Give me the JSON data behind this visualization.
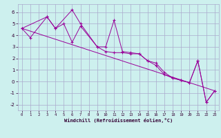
{
  "xlabel": "Windchill (Refroidissement éolien,°C)",
  "bg_color": "#cdf0ee",
  "grid_color": "#aaaacc",
  "line_color": "#990099",
  "xlim": [
    -0.5,
    23.5
  ],
  "ylim": [
    -2.5,
    6.7
  ],
  "xticks": [
    0,
    1,
    2,
    3,
    4,
    5,
    6,
    7,
    8,
    9,
    10,
    11,
    12,
    13,
    14,
    15,
    16,
    17,
    18,
    19,
    20,
    21,
    22,
    23
  ],
  "yticks": [
    -2,
    -1,
    0,
    1,
    2,
    3,
    4,
    5,
    6
  ],
  "line1_x": [
    0,
    1,
    3,
    4,
    5,
    6,
    7,
    9,
    10,
    11,
    12,
    13,
    14,
    15,
    16,
    17,
    18,
    19,
    20,
    21,
    22,
    23
  ],
  "line1_y": [
    4.6,
    3.8,
    5.6,
    4.6,
    5.0,
    3.4,
    4.8,
    3.0,
    2.6,
    2.5,
    2.5,
    2.4,
    2.4,
    1.8,
    1.6,
    0.8,
    0.3,
    0.1,
    -0.1,
    1.8,
    -1.8,
    -0.8
  ],
  "line2_x": [
    0,
    3,
    4,
    6,
    7,
    9,
    10,
    11,
    12,
    13,
    14,
    15,
    16,
    17,
    18,
    19,
    20,
    21,
    22,
    23
  ],
  "line2_y": [
    4.6,
    5.6,
    4.6,
    6.2,
    5.0,
    3.0,
    3.0,
    5.3,
    2.6,
    2.5,
    2.4,
    1.8,
    1.4,
    0.6,
    0.3,
    0.1,
    -0.1,
    1.8,
    -1.8,
    -0.8
  ],
  "line3_x": [
    0,
    23
  ],
  "line3_y": [
    4.6,
    -0.8
  ]
}
